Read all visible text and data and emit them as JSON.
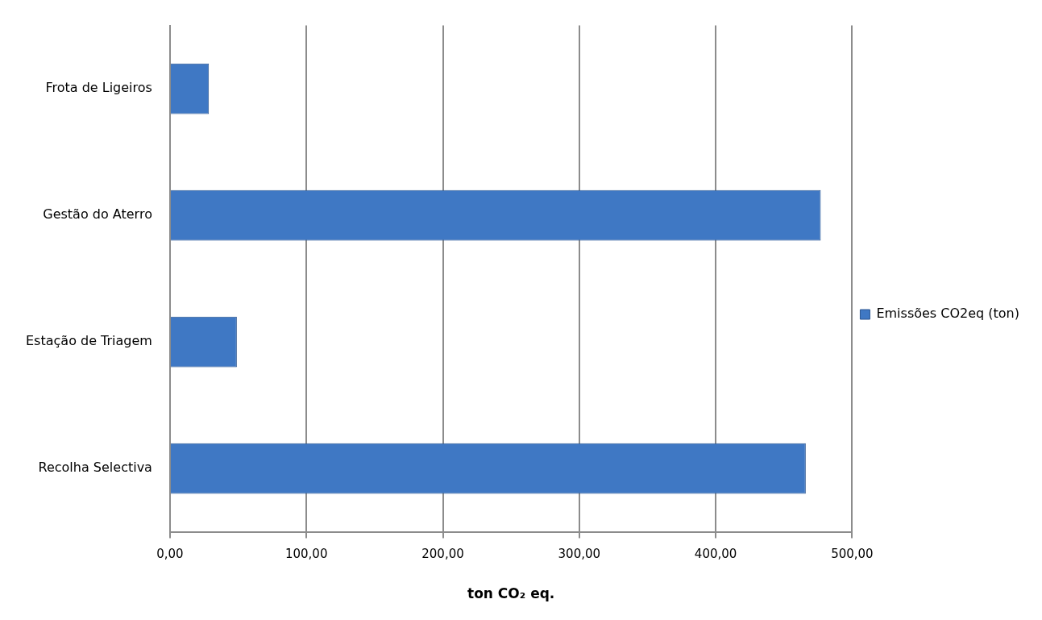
{
  "chart_data": {
    "type": "bar",
    "orientation": "horizontal",
    "xlabel": "ton CO₂ eq.",
    "categories": [
      "Frota de Ligeiros",
      "Gestão do Aterro",
      "Estação de Triagem",
      "Recolha Selectiva"
    ],
    "series": [
      {
        "name": "Emissões CO2eq (ton)",
        "color": "#3f78c4",
        "values": [
          28.5,
          477,
          49,
          466
        ]
      }
    ],
    "xlim": [
      0,
      500
    ],
    "xticks": [
      {
        "value": 0,
        "label": "0,00"
      },
      {
        "value": 100,
        "label": "100,00"
      },
      {
        "value": 200,
        "label": "200,00"
      },
      {
        "value": 300,
        "label": "300,00"
      },
      {
        "value": 400,
        "label": "400,00"
      },
      {
        "value": 500,
        "label": "500,00"
      }
    ],
    "grid": "x",
    "legend": "right"
  }
}
